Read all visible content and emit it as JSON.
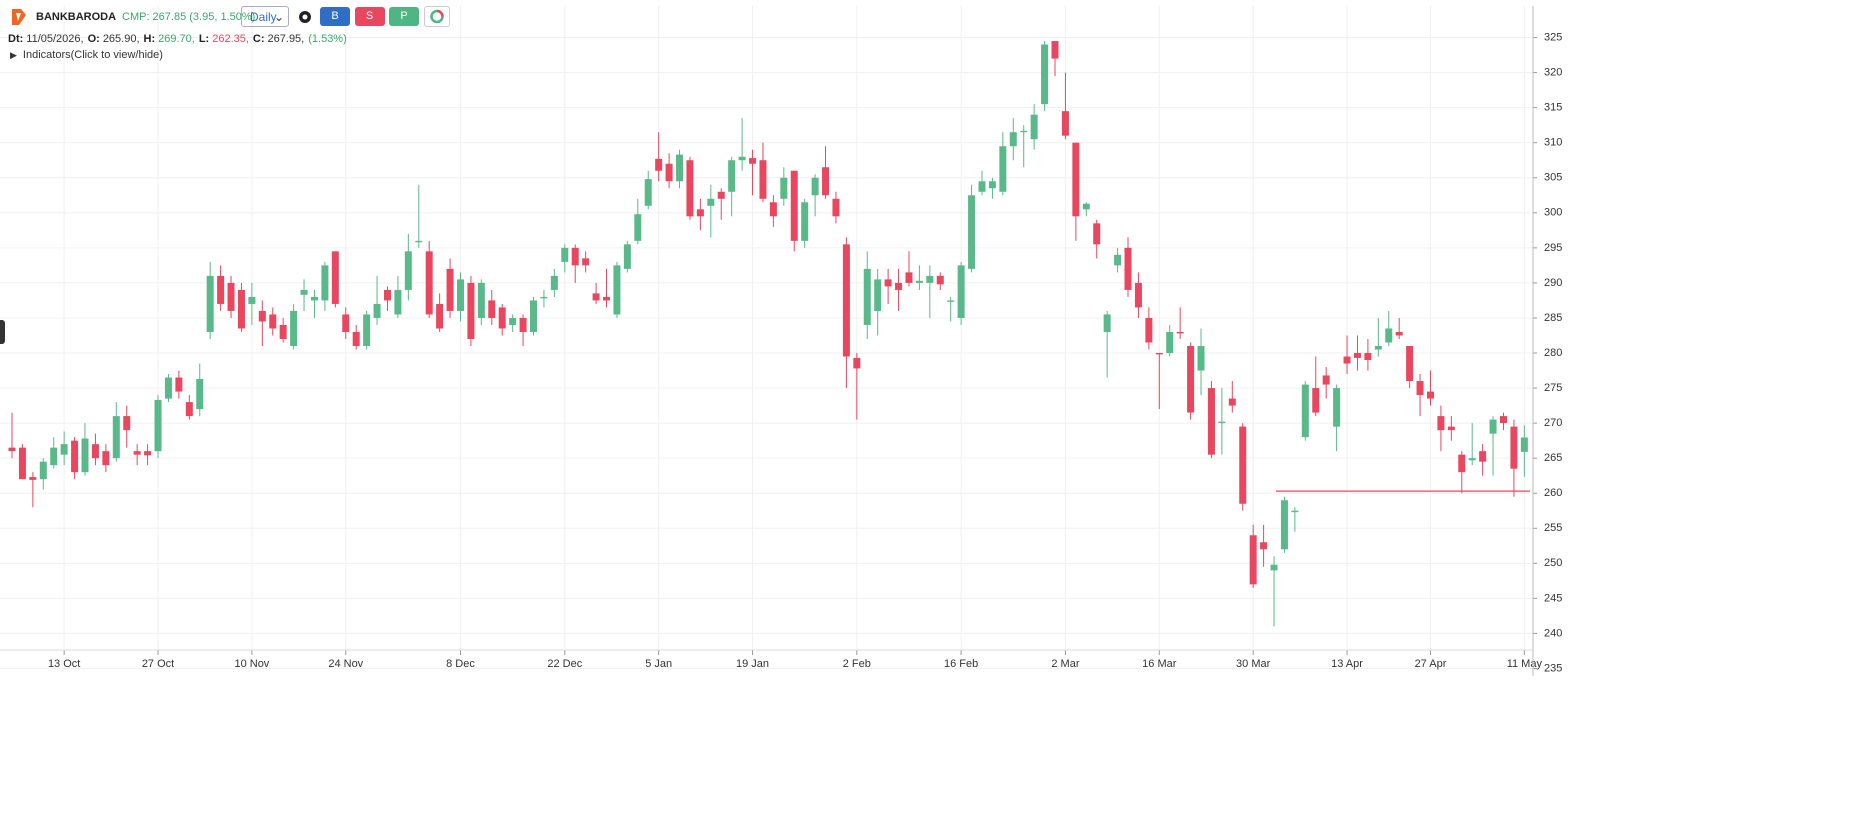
{
  "header": {
    "symbol": "BANKBARODA",
    "cmp": "CMP: 267.85 (3.95, 1.50%)",
    "interval": "Daily",
    "buttons": [
      {
        "text": "B",
        "color": "#2f6ec4"
      },
      {
        "text": "S",
        "color": "#e8475f"
      },
      {
        "text": "P",
        "color": "#4fb585"
      }
    ],
    "info": [
      {
        "label": "Dt:",
        "value": "11/05/2026,",
        "color": "#333333"
      },
      {
        "label": "O:",
        "value": "265.90,",
        "color": "#333333"
      },
      {
        "label": "H:",
        "value": "269.70,",
        "color": "#3aa76d"
      },
      {
        "label": "L:",
        "value": "262.35,",
        "color": "#e8475f"
      },
      {
        "label": "C:",
        "value": "267.95,",
        "color": "#333333"
      }
    ],
    "change": "(1.53%)",
    "indicators": "Indicators(Click to view/hide)"
  },
  "chart_data": {
    "type": "candlestick",
    "categories": [
      null,
      null,
      null,
      null,
      null,
      "13 Oct",
      null,
      null,
      null,
      null,
      null,
      null,
      null,
      null,
      "27 Oct",
      null,
      null,
      null,
      null,
      null,
      null,
      null,
      null,
      "10 Nov",
      null,
      null,
      null,
      null,
      null,
      null,
      null,
      null,
      "24 Nov",
      null,
      null,
      null,
      null,
      null,
      null,
      null,
      null,
      null,
      null,
      "8 Dec",
      null,
      null,
      null,
      null,
      null,
      null,
      null,
      null,
      null,
      "22 Dec",
      null,
      null,
      null,
      null,
      null,
      null,
      null,
      null,
      "5 Jan",
      null,
      null,
      null,
      null,
      null,
      null,
      null,
      null,
      "19 Jan",
      null,
      null,
      null,
      null,
      null,
      null,
      null,
      null,
      null,
      "2 Feb",
      null,
      null,
      null,
      null,
      null,
      null,
      null,
      null,
      null,
      "16 Feb",
      null,
      null,
      null,
      null,
      null,
      null,
      null,
      null,
      null,
      "2 Mar",
      null,
      null,
      null,
      null,
      null,
      null,
      null,
      null,
      "16 Mar",
      null,
      null,
      null,
      null,
      null,
      null,
      null,
      null,
      "30 Mar",
      null,
      null,
      null,
      null,
      null,
      null,
      null,
      null,
      "13 Apr",
      null,
      null,
      null,
      null,
      null,
      null,
      null,
      "27 Apr",
      null,
      null,
      null,
      null,
      null,
      null,
      null,
      null,
      "11 May"
    ],
    "open": [
      266.5,
      266.5,
      262.3,
      262,
      264,
      265.5,
      267.5,
      263,
      267,
      266,
      265,
      271,
      266,
      266,
      266,
      273.5,
      276.5,
      273,
      272,
      283,
      291,
      290,
      289,
      287,
      286,
      285.5,
      284,
      281,
      288.3,
      287.5,
      287.5,
      294.5,
      285.5,
      283,
      281,
      285,
      289,
      285.5,
      289,
      295.8,
      294.5,
      287,
      292,
      286,
      290,
      285,
      287.5,
      286.5,
      284,
      285,
      283,
      287.8,
      289,
      293,
      295,
      293.5,
      288.5,
      288,
      285.5,
      292,
      296,
      301,
      307.7,
      307,
      304.5,
      307.5,
      300.5,
      301,
      303,
      303,
      307.5,
      307.8,
      307.5,
      301.5,
      302,
      306,
      296,
      302.5,
      306.5,
      302,
      295.5,
      279.3,
      284,
      286,
      290.5,
      290,
      291.5,
      290,
      290,
      291,
      287.3,
      285,
      292,
      303,
      303.5,
      303,
      309.5,
      311.5,
      310.5,
      315.5,
      324.5,
      314.5,
      310,
      300.5,
      298.5,
      283,
      292.5,
      295,
      290,
      285,
      280,
      280,
      283,
      281,
      277.5,
      275,
      270,
      273.5,
      269.5,
      254,
      253,
      249,
      252,
      257.3,
      268,
      275,
      276.8,
      269.5,
      279.5,
      280,
      280,
      280.5,
      281.5,
      283,
      281,
      276,
      274.5,
      271,
      269.5,
      265.5,
      264.7,
      266,
      268.5,
      271,
      269.5,
      265.9
    ],
    "high": [
      271.5,
      267,
      263,
      265,
      268,
      268.8,
      268,
      270,
      268.5,
      267,
      273,
      272.5,
      267,
      267,
      274,
      277,
      277.5,
      274,
      278.5,
      293,
      292.5,
      291,
      290,
      290,
      287.5,
      286.5,
      285,
      287,
      290.5,
      289,
      293,
      294.5,
      286.5,
      284,
      286,
      291,
      289.5,
      291,
      297,
      304,
      296,
      288.5,
      293.5,
      291.5,
      291,
      290.5,
      289,
      287,
      285.5,
      285.5,
      288,
      289,
      292,
      295.5,
      295.5,
      294.5,
      290,
      292,
      293,
      296,
      302,
      306,
      311.5,
      308.5,
      309,
      308,
      302,
      304,
      303.5,
      308,
      313.5,
      309,
      310,
      302.5,
      306.5,
      306,
      302,
      305.5,
      309.5,
      303,
      296.5,
      280,
      294.5,
      292,
      292,
      292,
      294.5,
      292.5,
      292.5,
      291.5,
      288,
      293,
      304,
      306,
      305,
      311.5,
      313.5,
      312.5,
      315.5,
      324.5,
      324.5,
      320,
      310,
      301.5,
      299,
      286,
      295,
      296.5,
      291.5,
      286.5,
      280,
      284,
      286.5,
      281.5,
      283.5,
      276,
      275,
      276,
      270,
      255.5,
      255.5,
      251,
      259.5,
      258,
      276,
      279.5,
      278,
      275.5,
      282.5,
      282.5,
      282,
      285,
      286,
      285,
      281,
      277,
      277.5,
      272.5,
      271,
      266,
      270,
      267,
      271,
      271.5,
      270.5,
      269.7
    ],
    "low": [
      265,
      262,
      258,
      260.5,
      263.5,
      264,
      262,
      262.5,
      264,
      263,
      264.5,
      266.5,
      264,
      264,
      265,
      273,
      273.5,
      270.5,
      271,
      282,
      286,
      285,
      283,
      284,
      281,
      282.5,
      281.5,
      280.5,
      286,
      285,
      286,
      286.5,
      282,
      280.5,
      280.5,
      284,
      286,
      285,
      287.5,
      295,
      285,
      283,
      285,
      284.5,
      281,
      284,
      284,
      282.5,
      283,
      281,
      282.5,
      286.5,
      288,
      291.5,
      290,
      291.5,
      287,
      286.5,
      285,
      291.5,
      295.5,
      300.5,
      304.5,
      303.5,
      303.5,
      299,
      297.5,
      296.5,
      299,
      299.5,
      306,
      302.5,
      301.5,
      298,
      301,
      294.5,
      295,
      299.5,
      302,
      298.5,
      275,
      270.5,
      282,
      282.5,
      287,
      286,
      289.5,
      289,
      285,
      289,
      284.5,
      284,
      291.5,
      302.5,
      302,
      302.5,
      307.5,
      306.5,
      309,
      314.5,
      319.5,
      310.5,
      296,
      299.5,
      293.5,
      276.5,
      291.5,
      288,
      285,
      280.5,
      272,
      279.5,
      282,
      270.5,
      274,
      265,
      265.5,
      271.5,
      257.5,
      246.5,
      249.5,
      241,
      251.5,
      254.5,
      267.5,
      271,
      273.5,
      266,
      277,
      277.5,
      277.5,
      279.5,
      281,
      282,
      275,
      271,
      272.5,
      266,
      267.5,
      260,
      264,
      262.5,
      262.5,
      269,
      259.5,
      262.35
    ],
    "close": [
      266,
      262,
      261.9,
      264.5,
      266.5,
      267,
      263,
      267.8,
      265,
      264,
      271,
      269,
      265.5,
      265.4,
      273.3,
      276.5,
      274.5,
      271,
      276.3,
      291,
      287,
      286,
      283.5,
      288,
      284.5,
      283.5,
      282,
      286,
      289,
      288,
      292.5,
      287,
      283,
      281,
      285.5,
      287,
      287.5,
      289,
      294.5,
      296,
      285.5,
      283.5,
      286,
      290.5,
      282,
      290,
      285,
      283.5,
      285,
      283,
      287.5,
      288,
      291,
      295,
      292.5,
      292.5,
      287.5,
      287.5,
      292.5,
      295.5,
      299.8,
      304.8,
      306,
      304.5,
      308.3,
      299.5,
      299.5,
      302,
      302,
      307.5,
      308,
      307,
      302,
      299.5,
      305,
      296,
      301.5,
      305,
      302.5,
      299.5,
      279.5,
      277.8,
      292,
      290.5,
      289.5,
      289,
      290,
      290.3,
      291,
      289.8,
      287.5,
      292.5,
      302.5,
      304.5,
      304.5,
      309.5,
      311.5,
      311.7,
      314,
      324,
      322,
      311,
      299.5,
      301.3,
      295.5,
      285.5,
      294,
      289,
      286.5,
      281.5,
      279.8,
      283,
      282.8,
      271.5,
      281,
      265.5,
      270.2,
      272.5,
      258.5,
      247,
      252,
      249.8,
      259,
      257.5,
      275.5,
      271.5,
      275.5,
      275,
      278.5,
      279.3,
      279,
      281,
      283.5,
      282.5,
      276,
      274,
      273.5,
      269,
      269,
      263,
      265,
      264.5,
      270.5,
      270,
      263.5,
      267.95
    ],
    "up_color": "#5ab98a",
    "down_color": "#e8475f",
    "ylim": [
      232.5,
      329.5
    ],
    "yticks": [
      235,
      240,
      245,
      250,
      255,
      260,
      265,
      270,
      275,
      280,
      285,
      290,
      295,
      300,
      305,
      310,
      315,
      320,
      325
    ],
    "grid": true,
    "hline": {
      "value": 260.3,
      "color": "#e8475f"
    }
  }
}
